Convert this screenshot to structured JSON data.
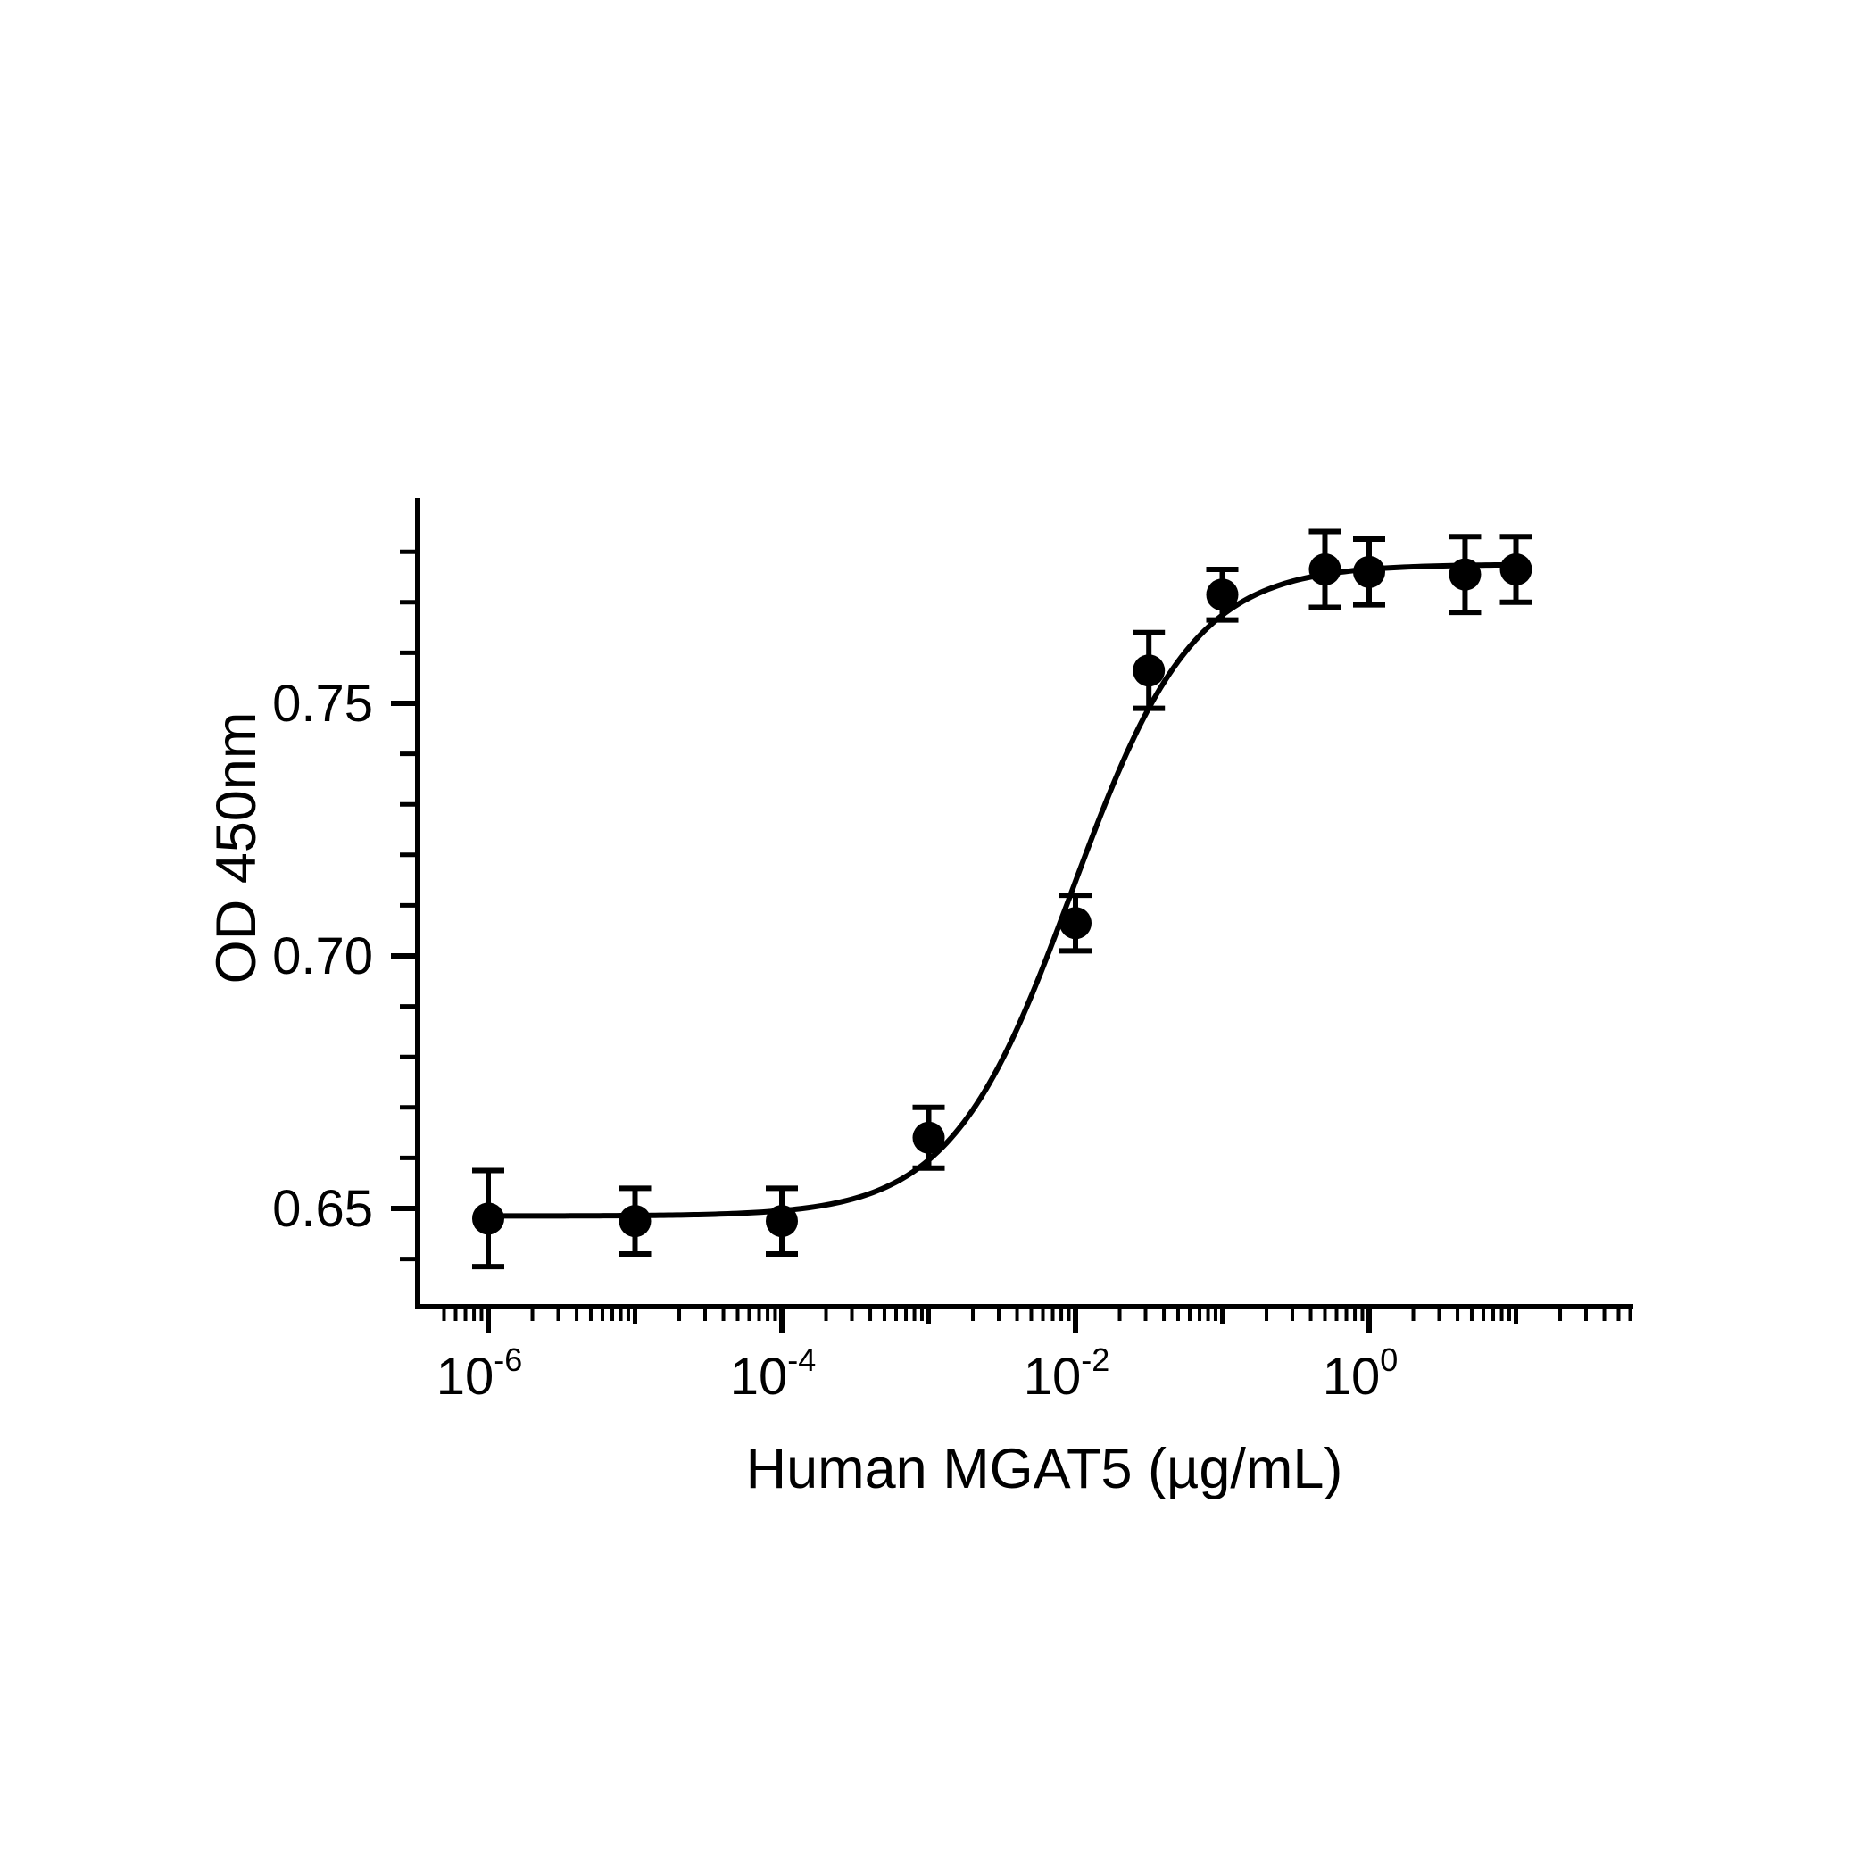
{
  "chart_data": {
    "type": "scatter",
    "xlabel": "Human MGAT5 (µg/mL)",
    "ylabel": "OD 450nm",
    "x_scale": "log",
    "xlim": [
      5e-07,
      70
    ],
    "ylim": [
      0.63,
      0.785
    ],
    "x_ticks": [
      {
        "value": 1e-06,
        "base": "10",
        "exp": "-6"
      },
      {
        "value": 0.0001,
        "base": "10",
        "exp": "-4"
      },
      {
        "value": 0.01,
        "base": "10",
        "exp": "-2"
      },
      {
        "value": 1,
        "base": "10",
        "exp": "0"
      }
    ],
    "y_ticks": [
      {
        "value": 0.65,
        "label": "0.65"
      },
      {
        "value": 0.7,
        "label": "0.70"
      },
      {
        "value": 0.75,
        "label": "0.75"
      }
    ],
    "series": [
      {
        "points": [
          {
            "x": 1e-06,
            "y": 0.648,
            "err": 0.0095
          },
          {
            "x": 1e-05,
            "y": 0.6475,
            "err": 0.0065
          },
          {
            "x": 0.0001,
            "y": 0.6475,
            "err": 0.0065
          },
          {
            "x": 0.001,
            "y": 0.664,
            "err": 0.006
          },
          {
            "x": 0.01,
            "y": 0.7065,
            "err": 0.0055
          },
          {
            "x": 0.0316,
            "y": 0.7565,
            "err": 0.0075
          },
          {
            "x": 0.1,
            "y": 0.7715,
            "err": 0.005
          },
          {
            "x": 0.5,
            "y": 0.7765,
            "err": 0.0075
          },
          {
            "x": 1,
            "y": 0.776,
            "err": 0.0065
          },
          {
            "x": 4.5,
            "y": 0.7755,
            "err": 0.0075
          },
          {
            "x": 10,
            "y": 0.7765,
            "err": 0.0065
          }
        ],
        "fit": {
          "model": "4PL",
          "bottom": 0.6485,
          "top": 0.7775,
          "ec50": 0.0095,
          "hill": 1.05
        },
        "color": "#000000"
      }
    ]
  }
}
